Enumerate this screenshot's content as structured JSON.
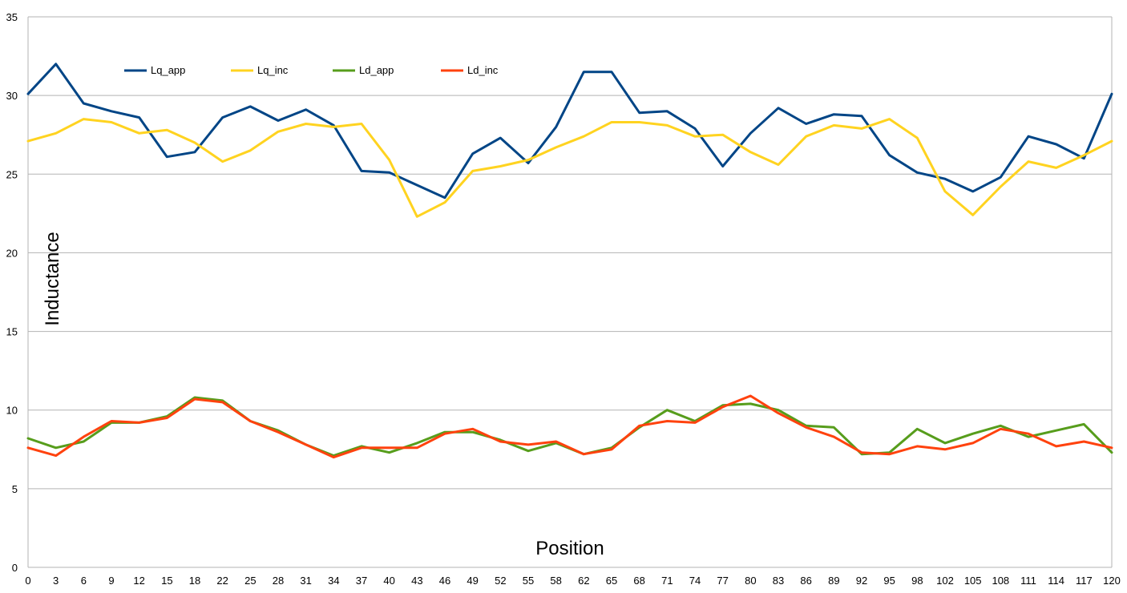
{
  "chart_data": {
    "type": "line",
    "title": "",
    "xlabel": "Position",
    "ylabel": "Inductance",
    "categories": [
      "0",
      "3",
      "6",
      "9",
      "12",
      "15",
      "18",
      "22",
      "25",
      "28",
      "31",
      "34",
      "37",
      "40",
      "43",
      "46",
      "49",
      "52",
      "55",
      "58",
      "62",
      "65",
      "68",
      "71",
      "74",
      "77",
      "80",
      "83",
      "86",
      "89",
      "92",
      "95",
      "98",
      "102",
      "105",
      "108",
      "111",
      "114",
      "117",
      "120"
    ],
    "ylim": [
      0,
      35
    ],
    "yticks": [
      "0",
      "5",
      "10",
      "15",
      "20",
      "25",
      "30",
      "35"
    ],
    "grid": "horizontal",
    "legend": "top-left",
    "series": [
      {
        "name": "Lq_app",
        "color": "#004586",
        "values": [
          30.1,
          32.0,
          29.5,
          29.0,
          28.6,
          26.1,
          26.4,
          28.6,
          29.3,
          28.4,
          29.1,
          28.1,
          25.2,
          25.1,
          24.3,
          23.5,
          26.3,
          27.3,
          25.7,
          28.0,
          31.5,
          31.5,
          28.9,
          29.0,
          27.9,
          25.5,
          27.6,
          29.2,
          28.2,
          28.8,
          28.7,
          26.2,
          25.1,
          24.7,
          23.9,
          24.8,
          27.4,
          26.9,
          26.0,
          30.1
        ]
      },
      {
        "name": "Lq_inc",
        "color": "#ffd320",
        "values": [
          27.1,
          27.6,
          28.5,
          28.3,
          27.6,
          27.8,
          27.0,
          25.8,
          26.5,
          27.7,
          28.2,
          28.0,
          28.2,
          25.9,
          22.3,
          23.2,
          25.2,
          25.5,
          25.9,
          26.7,
          27.4,
          28.3,
          28.3,
          28.1,
          27.4,
          27.5,
          26.4,
          25.6,
          27.4,
          28.1,
          27.9,
          28.5,
          27.3,
          23.9,
          22.4,
          24.2,
          25.8,
          25.4,
          26.2,
          27.1
        ]
      },
      {
        "name": "Ld_app",
        "color": "#579d1c",
        "values": [
          8.2,
          7.6,
          8.0,
          9.2,
          9.2,
          9.6,
          10.8,
          10.6,
          9.3,
          8.7,
          7.8,
          7.1,
          7.7,
          7.3,
          7.9,
          8.6,
          8.6,
          8.1,
          7.4,
          7.9,
          7.2,
          7.6,
          8.9,
          10.0,
          9.3,
          10.3,
          10.4,
          10.0,
          9.0,
          8.9,
          7.2,
          7.3,
          8.8,
          7.9,
          8.5,
          9.0,
          8.3,
          8.7,
          9.1,
          7.3
        ]
      },
      {
        "name": "Ld_inc",
        "color": "#ff420e",
        "values": [
          7.6,
          7.1,
          8.3,
          9.3,
          9.2,
          9.5,
          10.7,
          10.5,
          9.3,
          8.6,
          7.8,
          7.0,
          7.6,
          7.6,
          7.6,
          8.5,
          8.8,
          8.0,
          7.8,
          8.0,
          7.2,
          7.5,
          9.0,
          9.3,
          9.2,
          10.2,
          10.9,
          9.8,
          8.9,
          8.3,
          7.3,
          7.2,
          7.7,
          7.5,
          7.9,
          8.8,
          8.5,
          7.7,
          8.0,
          7.6
        ]
      }
    ]
  }
}
